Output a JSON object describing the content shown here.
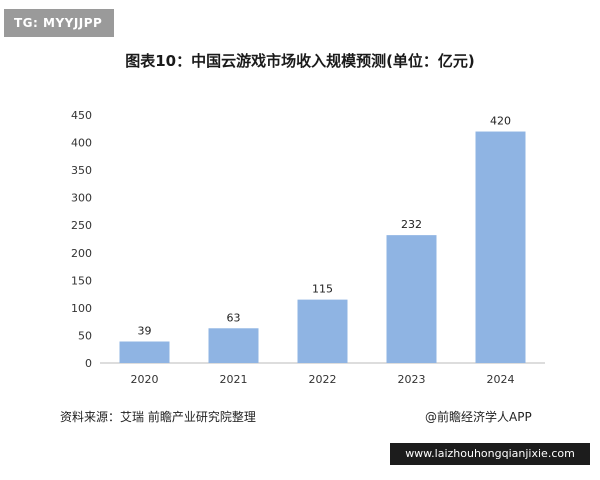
{
  "badge": {
    "text": "TG: MYYJJPP"
  },
  "chart_data": {
    "type": "bar",
    "title": "图表10：中国云游戏市场收入规模预测(单位：亿元)",
    "categories": [
      "2020",
      "2021",
      "2022",
      "2023",
      "2024"
    ],
    "values": [
      39,
      63,
      115,
      232,
      420
    ],
    "ylim": [
      0,
      450
    ],
    "yticks": [
      0,
      50,
      100,
      150,
      200,
      250,
      300,
      350,
      400,
      450
    ],
    "xlabel": "",
    "ylabel": "",
    "grid": false,
    "bar_color": "#8fb4e3",
    "data_labels": true
  },
  "footer": {
    "source": "资料来源：艾瑞 前瞻产业研究院整理",
    "attribution": "@前瞻经济学人APP"
  },
  "banner": {
    "url": "www.laizhouhongqianjixie.com"
  }
}
